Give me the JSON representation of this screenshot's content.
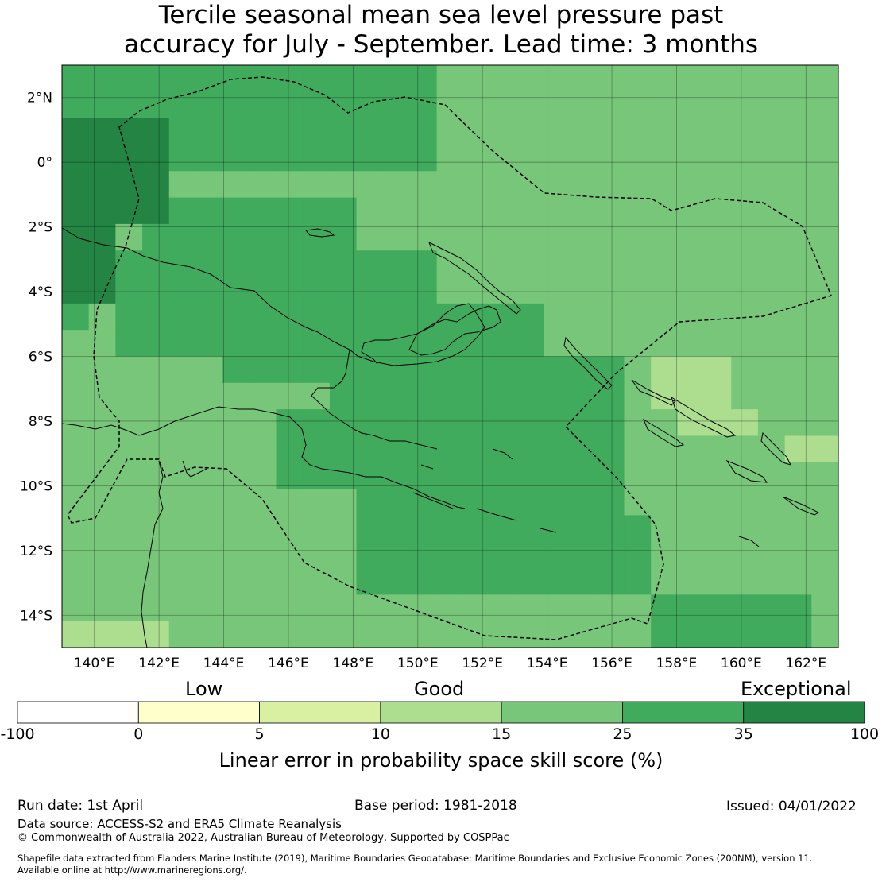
{
  "title_line1": "Tercile seasonal mean sea level pressure past",
  "title_line2": "accuracy for July - September. Lead time: 3 months",
  "map": {
    "lon_range": [
      139,
      163
    ],
    "lat_range": [
      -15,
      3
    ],
    "lon_ticks": [
      "140°E",
      "142°E",
      "144°E",
      "146°E",
      "148°E",
      "150°E",
      "152°E",
      "154°E",
      "156°E",
      "158°E",
      "160°E",
      "162°E"
    ],
    "lat_ticks": [
      "2°N",
      "0°",
      "2°S",
      "4°S",
      "6°S",
      "8°S",
      "10°S",
      "12°S",
      "14°S"
    ]
  },
  "legend": {
    "category_low": "Low",
    "category_good": "Good",
    "category_exceptional": "Exceptional",
    "bins": [
      {
        "from": -100,
        "to": 0,
        "color": "#ffffff"
      },
      {
        "from": 0,
        "to": 5,
        "color": "#ffffcc"
      },
      {
        "from": 5,
        "to": 10,
        "color": "#d9f0a3"
      },
      {
        "from": 10,
        "to": 15,
        "color": "#addd8e"
      },
      {
        "from": 15,
        "to": 25,
        "color": "#78c679"
      },
      {
        "from": 25,
        "to": 35,
        "color": "#41ab5d"
      },
      {
        "from": 35,
        "to": 100,
        "color": "#238443"
      }
    ],
    "ticks": [
      "-100",
      "0",
      "5",
      "10",
      "15",
      "25",
      "35",
      "100"
    ],
    "axis_label": "Linear error in probability space skill score (%)"
  },
  "footer": {
    "run_date": "Run date: 1st April",
    "base_period": "Base period: 1981-2018",
    "issued": "Issued: 04/01/2022",
    "data_source": "Data source: ACCESS-S2 and ERA5 Climate Reanalysis",
    "copyright": "© Commonwealth of Australia 2022, Australian Bureau of Meteorology, Supported by COSPPac",
    "shapefile_line1": "Shapefile data extracted from Flanders Marine Institute (2019), Maritime Boundaries Geodatabase: Maritime Boundaries and Exclusive Economic Zones (200NM), version 11.",
    "shapefile_line2": "Available online at http://www.marineregions.org/."
  }
}
